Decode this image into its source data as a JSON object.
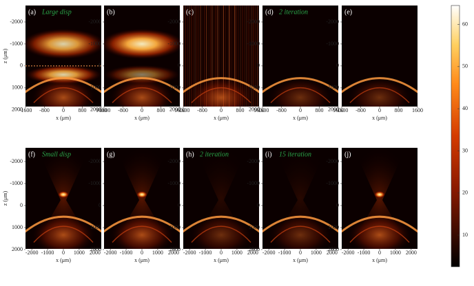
{
  "panels": [
    {
      "label": "(a)",
      "note": "Large disp",
      "ylabel": "z (μm)",
      "xlabel": "x (μm)",
      "xticks": [
        -1600,
        -800,
        0,
        800,
        1600
      ],
      "xlim": [
        -1600,
        1600
      ],
      "yticks": [
        -2000,
        -1000,
        0,
        1000,
        2000
      ],
      "ylim": [
        -2750,
        1850
      ]
    },
    {
      "label": "(b)",
      "xlabel": "x (μm)",
      "xticks": [
        -1600,
        -800,
        0,
        800,
        1600
      ],
      "xlim": [
        -1600,
        1600
      ],
      "yticks": [
        -2000,
        -1000,
        0,
        1000,
        2000
      ],
      "ylim": [
        -2750,
        1850
      ]
    },
    {
      "label": "(c)",
      "xlabel": "x (μm)",
      "xticks": [
        -1600,
        -800,
        0,
        800,
        1600
      ],
      "xlim": [
        -1600,
        1600
      ],
      "yticks": [
        -2000,
        -1000,
        0,
        1000,
        2000
      ],
      "ylim": [
        -2750,
        1850
      ]
    },
    {
      "label": "(d)",
      "note": "2 iteration",
      "xlabel": "x (μm)",
      "xticks": [
        -1600,
        -800,
        0,
        800,
        1600
      ],
      "xlim": [
        -1600,
        1600
      ],
      "yticks": [
        -2000,
        -1000,
        0,
        1000,
        2000
      ],
      "ylim": [
        -2750,
        1850
      ]
    },
    {
      "label": "(e)",
      "xlabel": "x (μm)",
      "xticks": [
        -1600,
        -800,
        0,
        800,
        1600
      ],
      "xlim": [
        -1600,
        1600
      ],
      "yticks": [
        -2000,
        -1000,
        0,
        1000,
        2000
      ],
      "ylim": [
        -2750,
        1850
      ]
    },
    {
      "label": "(f)",
      "note": "Small disp",
      "ylabel": "z (μm)",
      "xlabel": "x (μm)",
      "xticks": [
        -2000,
        -1000,
        0,
        1000,
        2000
      ],
      "xlim": [
        -2400,
        2400
      ],
      "yticks": [
        -2000,
        -1000,
        0,
        1000,
        2000
      ],
      "ylim": [
        -2625,
        1970
      ]
    },
    {
      "label": "(g)",
      "xlabel": "x (μm)",
      "xticks": [
        -2000,
        -1000,
        0,
        1000,
        2000
      ],
      "xlim": [
        -2400,
        2400
      ],
      "yticks": [
        -2000,
        -1000,
        0,
        1000,
        2000
      ],
      "ylim": [
        -2625,
        1970
      ]
    },
    {
      "label": "(h)",
      "note": "2 iteration",
      "xlabel": "x (μm)",
      "xticks": [
        -2000,
        -1000,
        0,
        1000,
        2000
      ],
      "xlim": [
        -2400,
        2400
      ],
      "yticks": [
        -2000,
        -1000,
        0,
        1000,
        2000
      ],
      "ylim": [
        -2625,
        1970
      ]
    },
    {
      "label": "(i)",
      "note": "15 iteration",
      "xlabel": "x (μm)",
      "xticks": [
        -2000,
        -1000,
        0,
        1000,
        2000
      ],
      "xlim": [
        -2400,
        2400
      ],
      "yticks": [
        -2000,
        -1000,
        0,
        1000,
        2000
      ],
      "ylim": [
        -2625,
        1970
      ]
    },
    {
      "label": "(j)",
      "xlabel": "x (μm)",
      "xticks": [
        -2000,
        -1000,
        0,
        1000,
        2000
      ],
      "xlim": [
        -2400,
        2400
      ],
      "yticks": [
        -2000,
        -1000,
        0,
        1000,
        2000
      ],
      "ylim": [
        -2625,
        1970
      ]
    }
  ],
  "colorbar": {
    "ticks": [
      10,
      20,
      30,
      40,
      50,
      60
    ],
    "lim": [
      2.5,
      64.5
    ]
  }
}
